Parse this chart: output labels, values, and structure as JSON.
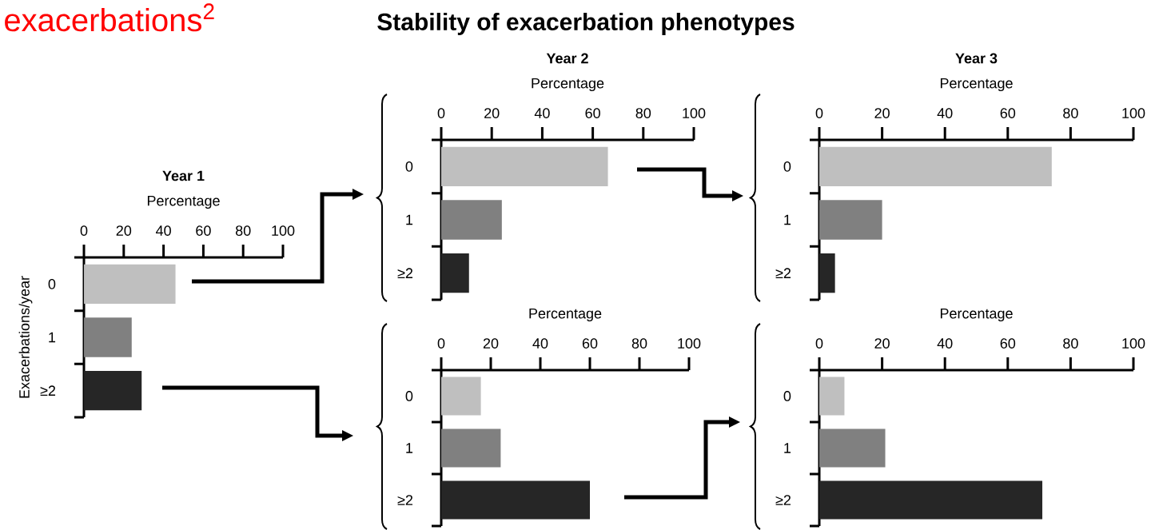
{
  "chart_data": [
    {
      "type": "other",
      "title": "Stability of exacerbation phenotypes",
      "annotations": [
        "exacerbations$^{2}$"
      ]
    },
    {
      "type": "bar",
      "orientation": "horizontal",
      "title": "Year 1",
      "xlabel": "Percentage",
      "ylabel": "Exacerbations/year",
      "categories": [
        "0",
        "1",
        "≥2"
      ],
      "values": [
        46,
        24,
        29
      ],
      "colors": [
        "#bfbfbf",
        "#808080",
        "#262626"
      ],
      "xlim": [
        0,
        100
      ],
      "xticks": [
        0,
        20,
        40,
        60,
        80,
        100
      ]
    },
    {
      "type": "bar",
      "orientation": "horizontal",
      "title": "Year 2",
      "xlabel": "Percentage",
      "categories": [
        "0",
        "1",
        "≥2"
      ],
      "values": [
        66,
        24,
        11
      ],
      "colors": [
        "#bfbfbf",
        "#808080",
        "#262626"
      ],
      "xlim": [
        0,
        100
      ],
      "xticks": [
        0,
        20,
        40,
        60,
        80,
        100
      ]
    },
    {
      "type": "bar",
      "orientation": "horizontal",
      "title": "Year 3",
      "xlabel": "Percentage",
      "categories": [
        "0",
        "1",
        "≥2"
      ],
      "values": [
        74,
        20,
        5
      ],
      "colors": [
        "#bfbfbf",
        "#808080",
        "#262626"
      ],
      "xlim": [
        0,
        100
      ],
      "xticks": [
        0,
        20,
        40,
        60,
        80,
        100
      ]
    },
    {
      "type": "bar",
      "orientation": "horizontal",
      "xlabel": "Percentage",
      "categories": [
        "0",
        "1",
        "≥2"
      ],
      "values": [
        16,
        24,
        60
      ],
      "colors": [
        "#bfbfbf",
        "#808080",
        "#262626"
      ],
      "xlim": [
        0,
        100
      ],
      "xticks": [
        0,
        20,
        40,
        60,
        80,
        100
      ]
    },
    {
      "type": "bar",
      "orientation": "horizontal",
      "xlabel": "Percentage",
      "categories": [
        "0",
        "1",
        "≥2"
      ],
      "values": [
        8,
        21,
        71
      ],
      "colors": [
        "#bfbfbf",
        "#808080",
        "#262626"
      ],
      "xlim": [
        0,
        100
      ],
      "xticks": [
        0,
        20,
        40,
        60,
        80,
        100
      ]
    }
  ]
}
